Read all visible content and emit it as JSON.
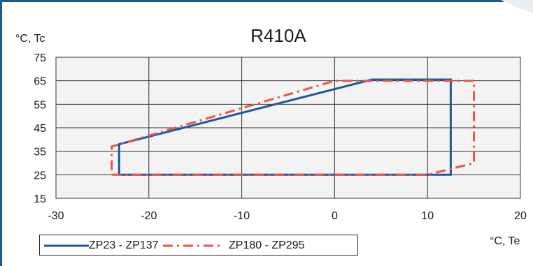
{
  "chart_data": {
    "type": "line",
    "title": "R410A",
    "ylabel": "°C, Tc",
    "xlabel": "°C, Te",
    "xlim": [
      -30,
      20
    ],
    "ylim": [
      15,
      75
    ],
    "xticks": [
      -30,
      -20,
      -10,
      0,
      10,
      20
    ],
    "yticks": [
      15,
      25,
      35,
      45,
      55,
      65,
      75
    ],
    "grid": true,
    "legend": "bottom-left",
    "series": [
      {
        "name": "ZP23 - ZP137",
        "color": "#1f5a96",
        "style": "solid",
        "x": [
          -23.2,
          -23.2,
          12.5,
          12.5,
          4.0,
          -23.2
        ],
        "y": [
          25,
          38,
          25,
          65.5,
          65.5,
          38
        ],
        "path_order": [
          [
            -23.2,
            25
          ],
          [
            12.5,
            25
          ],
          [
            12.5,
            65.5
          ],
          [
            4.0,
            65.5
          ],
          [
            -23.2,
            38
          ],
          [
            -23.2,
            25
          ]
        ]
      },
      {
        "name": "ZP180 - ZP295",
        "color": "#e8554a",
        "style": "dashdot",
        "x": [
          -24,
          -24,
          10,
          15,
          15,
          0,
          -24
        ],
        "y": [
          25,
          37,
          25,
          30,
          65,
          65,
          37
        ],
        "path_order": [
          [
            -24,
            25
          ],
          [
            10,
            25
          ],
          [
            15,
            30
          ],
          [
            15,
            65
          ],
          [
            0,
            65
          ],
          [
            -24,
            37
          ],
          [
            -24,
            25
          ]
        ]
      }
    ]
  },
  "legend": {
    "item1": "ZP23 - ZP137",
    "item2": "ZP180 - ZP295"
  }
}
